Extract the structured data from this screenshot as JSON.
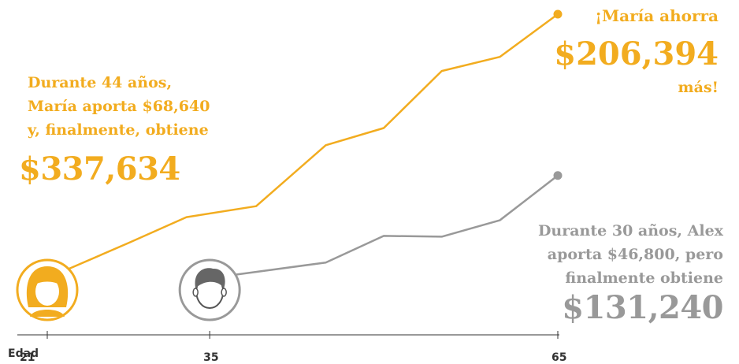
{
  "chart_data": {
    "type": "line",
    "xlabel": "Edad",
    "x_ticks": [
      21,
      35,
      65
    ],
    "xlim": [
      21,
      65
    ],
    "series": [
      {
        "name": "María",
        "color": "#f2ac1f",
        "x": [
          21,
          28,
          33,
          39,
          45,
          50,
          55,
          60,
          65
        ],
        "y": [
          0,
          45000,
          78000,
          92000,
          170000,
          192000,
          265000,
          283000,
          337634
        ]
      },
      {
        "name": "Alex",
        "color": "#999999",
        "x": [
          35,
          40,
          45,
          50,
          55,
          60,
          65
        ],
        "y": [
          0,
          10000,
          20000,
          54000,
          53000,
          74000,
          131240
        ]
      }
    ]
  },
  "text": {
    "maria_line1": "Durante 44 años,",
    "maria_line2": "María aporta $68,640",
    "maria_line3": "y, finalmente, obtiene",
    "maria_total": "$337,634",
    "savings_intro": "¡María ahorra",
    "savings_amount": "$206,394",
    "savings_outro": "más!",
    "alex_line1": "Durante 30 años, Alex",
    "alex_line2": "aporta $46,800, pero",
    "alex_line3": "finalmente obtiene",
    "alex_total": "$131,240"
  },
  "colors": {
    "maria": "#f2ac1f",
    "alex": "#999999",
    "axis": "#333333"
  },
  "icons": {
    "maria": "woman-avatar-icon",
    "alex": "man-avatar-icon"
  }
}
